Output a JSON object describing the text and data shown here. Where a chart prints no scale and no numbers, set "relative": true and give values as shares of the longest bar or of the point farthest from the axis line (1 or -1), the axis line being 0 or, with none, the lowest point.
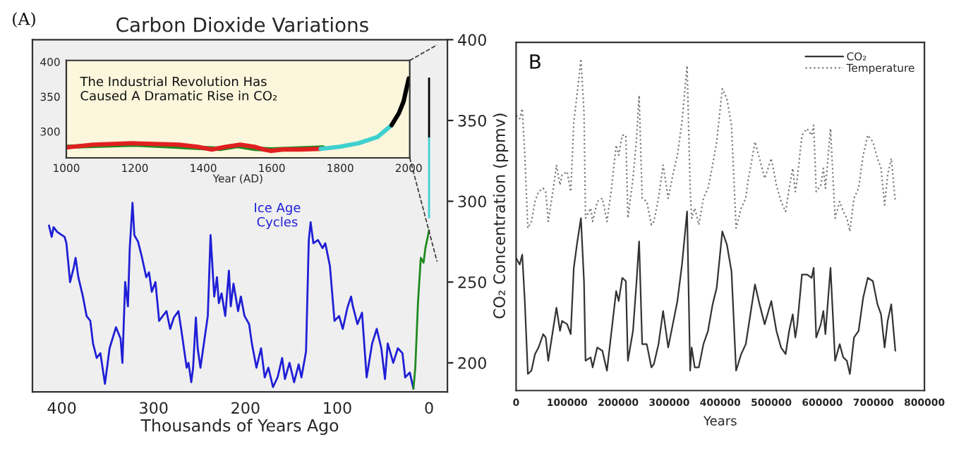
{
  "chart_data": [
    {
      "type": "line",
      "title": "Carbon Dioxide Variations",
      "xlabel": "Thousands of Years Ago",
      "ylabel": "CO₂ Concentration (ppmv)",
      "annotations": [
        "(A)",
        "Ice Age\nCycles"
      ],
      "xlim": [
        432,
        -20
      ],
      "xticks": [
        400,
        300,
        200,
        100,
        0
      ],
      "ylim": [
        182,
        400
      ],
      "yticks": [
        200,
        250,
        300,
        350,
        400
      ],
      "grid": false,
      "legend": false,
      "series": [
        {
          "color": "#1f1fd6",
          "x": [
            414,
            411,
            409,
            405,
            397,
            395,
            391,
            387,
            385,
            382,
            377,
            373,
            369,
            366,
            362,
            358,
            353,
            348,
            341,
            336,
            334,
            331,
            328,
            326,
            323,
            321,
            317,
            313,
            308,
            305,
            302,
            298,
            294,
            290,
            286,
            282,
            278,
            273,
            270,
            264,
            262,
            259,
            257,
            254,
            252,
            249,
            246,
            241,
            238,
            234,
            231,
            229,
            226,
            222,
            218,
            216,
            213,
            208,
            205,
            201,
            196,
            193,
            188,
            183,
            179,
            175,
            170,
            165,
            160,
            157,
            152,
            147,
            142,
            139,
            134,
            131,
            129,
            126,
            121,
            116,
            113,
            108,
            103,
            98,
            94,
            89,
            85,
            83,
            78,
            73,
            68,
            62,
            57,
            52,
            48,
            45,
            39,
            34,
            29,
            26,
            21,
            17
          ],
          "values": [
            285,
            278,
            284,
            281,
            278,
            274,
            250,
            259,
            265,
            253,
            241,
            229,
            226,
            212,
            203,
            206,
            187,
            209,
            222,
            215,
            200,
            250,
            235,
            271,
            299,
            279,
            275,
            266,
            253,
            256,
            244,
            250,
            226,
            229,
            232,
            221,
            228,
            232,
            221,
            197,
            200,
            188,
            197,
            228,
            209,
            197,
            209,
            229,
            279,
            241,
            253,
            237,
            243,
            229,
            257,
            235,
            249,
            232,
            241,
            229,
            224,
            212,
            197,
            209,
            191,
            197,
            185,
            191,
            203,
            190,
            200,
            188,
            199,
            191,
            207,
            276,
            287,
            274,
            276,
            271,
            274,
            260,
            226,
            229,
            221,
            234,
            241,
            235,
            224,
            231,
            191,
            212,
            221,
            209,
            190,
            212,
            200,
            209,
            206,
            191,
            194,
            184
          ]
        },
        {
          "color": "#1e8a1e",
          "x": [
            17,
            15,
            12,
            9,
            6,
            4,
            0
          ],
          "values": [
            184,
            197,
            238,
            265,
            262,
            271,
            282
          ]
        },
        {
          "color": "#40d0d0",
          "x": [
            0,
            0
          ],
          "values": [
            290,
            340
          ]
        },
        {
          "color": "#000000",
          "x": [
            0,
            0
          ],
          "values": [
            340,
            376
          ]
        }
      ]
    },
    {
      "type": "line",
      "xlabel": "Year (AD)",
      "annotations": [
        "The Industrial Revolution Has\nCaused A Dramatic Rise in CO₂"
      ],
      "xlim": [
        1000,
        2003
      ],
      "xticks": [
        1000,
        1200,
        1400,
        1600,
        1800,
        2000
      ],
      "ylim": [
        262,
        402
      ],
      "yticks": [
        300,
        350,
        400
      ],
      "grid": false,
      "legend": false,
      "series": [
        {
          "color": "#1e8a1e",
          "x": [
            1000,
            1200,
            1400,
            1450,
            1500,
            1550,
            1600,
            1750
          ],
          "values": [
            278,
            281,
            276,
            275,
            279,
            275,
            274,
            277
          ]
        },
        {
          "color": "#e02020",
          "x": [
            1000,
            1079,
            1189,
            1328,
            1383,
            1425,
            1466,
            1508,
            1549,
            1577,
            1597,
            1632,
            1687,
            1743
          ],
          "values": [
            277,
            281,
            283,
            281,
            278,
            274,
            278,
            281,
            278,
            274,
            272,
            274,
            274,
            275
          ]
        },
        {
          "color": "#40d0d0",
          "x": [
            1743,
            1798,
            1853,
            1909,
            1950
          ],
          "values": [
            275,
            278,
            283,
            292,
            309
          ]
        },
        {
          "color": "#000000",
          "x": [
            1950,
            1971,
            1985,
            2000
          ],
          "values": [
            309,
            326,
            343,
            376
          ]
        }
      ]
    },
    {
      "type": "line",
      "xlabel": "Years",
      "annotations": [
        "B"
      ],
      "relative": true,
      "xlim": [
        0,
        800000
      ],
      "xticks": [
        0,
        100000,
        200000,
        300000,
        400000,
        500000,
        600000,
        700000,
        800000
      ],
      "tick_labels": "x",
      "grid": false,
      "legend": "top right",
      "x": [
        0,
        7000,
        12000,
        17000,
        23000,
        30000,
        37000,
        44000,
        53000,
        58000,
        63000,
        72000,
        79000,
        86000,
        90000,
        100000,
        107000,
        113000,
        120000,
        127000,
        133000,
        136000,
        146000,
        150000,
        159000,
        169000,
        178000,
        187000,
        196000,
        201000,
        208000,
        215000,
        219000,
        229000,
        236000,
        241000,
        247000,
        256000,
        265000,
        270000,
        279000,
        288000,
        298000,
        307000,
        316000,
        325000,
        335000,
        341000,
        344000,
        350000,
        358000,
        367000,
        376000,
        385000,
        393000,
        404000,
        413000,
        422000,
        431000,
        441000,
        450000,
        454000,
        459000,
        468000,
        477000,
        487000,
        500000,
        510000,
        519000,
        528000,
        535000,
        542000,
        547000,
        551000,
        560000,
        570000,
        579000,
        583000,
        588000,
        597000,
        602000,
        606000,
        616000,
        625000,
        634000,
        641000,
        648000,
        654000,
        662000,
        671000,
        680000,
        689000,
        699000,
        708000,
        715000,
        722000,
        728000,
        735000,
        743000
      ],
      "series": [
        {
          "name": "CO₂",
          "color": "#333333",
          "line_style": "solid",
          "values": [
            0.4,
            0.38,
            0.41,
            0.27,
            0.05,
            0.06,
            0.11,
            0.13,
            0.17,
            0.16,
            0.09,
            0.18,
            0.25,
            0.18,
            0.21,
            0.2,
            0.17,
            0.37,
            0.45,
            0.52,
            0.33,
            0.09,
            0.1,
            0.07,
            0.13,
            0.12,
            0.06,
            0.18,
            0.3,
            0.27,
            0.34,
            0.33,
            0.09,
            0.18,
            0.33,
            0.45,
            0.14,
            0.14,
            0.07,
            0.08,
            0.14,
            0.24,
            0.13,
            0.2,
            0.27,
            0.38,
            0.54,
            0.06,
            0.13,
            0.07,
            0.07,
            0.14,
            0.18,
            0.26,
            0.31,
            0.48,
            0.44,
            0.36,
            0.06,
            0.11,
            0.14,
            0.18,
            0.23,
            0.32,
            0.26,
            0.2,
            0.27,
            0.18,
            0.13,
            0.11,
            0.18,
            0.23,
            0.16,
            0.2,
            0.35,
            0.35,
            0.34,
            0.37,
            0.16,
            0.2,
            0.24,
            0.17,
            0.37,
            0.09,
            0.14,
            0.1,
            0.09,
            0.05,
            0.16,
            0.18,
            0.28,
            0.34,
            0.33,
            0.26,
            0.23,
            0.13,
            0.21,
            0.26,
            0.12
          ]
        },
        {
          "name": "Temperature",
          "color": "#7a7a7a",
          "line_style": "dotted",
          "values": [
            0.83,
            0.82,
            0.85,
            0.71,
            0.49,
            0.51,
            0.57,
            0.6,
            0.61,
            0.6,
            0.51,
            0.6,
            0.68,
            0.62,
            0.65,
            0.66,
            0.6,
            0.81,
            0.9,
            1.0,
            0.84,
            0.52,
            0.55,
            0.51,
            0.57,
            0.58,
            0.51,
            0.61,
            0.74,
            0.71,
            0.77,
            0.77,
            0.52,
            0.64,
            0.76,
            0.89,
            0.58,
            0.57,
            0.5,
            0.51,
            0.58,
            0.68,
            0.58,
            0.65,
            0.71,
            0.81,
            0.98,
            0.61,
            0.52,
            0.55,
            0.5,
            0.58,
            0.61,
            0.68,
            0.75,
            0.91,
            0.88,
            0.8,
            0.49,
            0.55,
            0.58,
            0.63,
            0.67,
            0.75,
            0.7,
            0.64,
            0.7,
            0.62,
            0.57,
            0.54,
            0.61,
            0.67,
            0.6,
            0.64,
            0.77,
            0.79,
            0.77,
            0.8,
            0.6,
            0.62,
            0.67,
            0.61,
            0.79,
            0.52,
            0.57,
            0.54,
            0.52,
            0.48,
            0.58,
            0.61,
            0.71,
            0.77,
            0.75,
            0.7,
            0.67,
            0.56,
            0.65,
            0.7,
            0.57
          ]
        }
      ]
    }
  ]
}
